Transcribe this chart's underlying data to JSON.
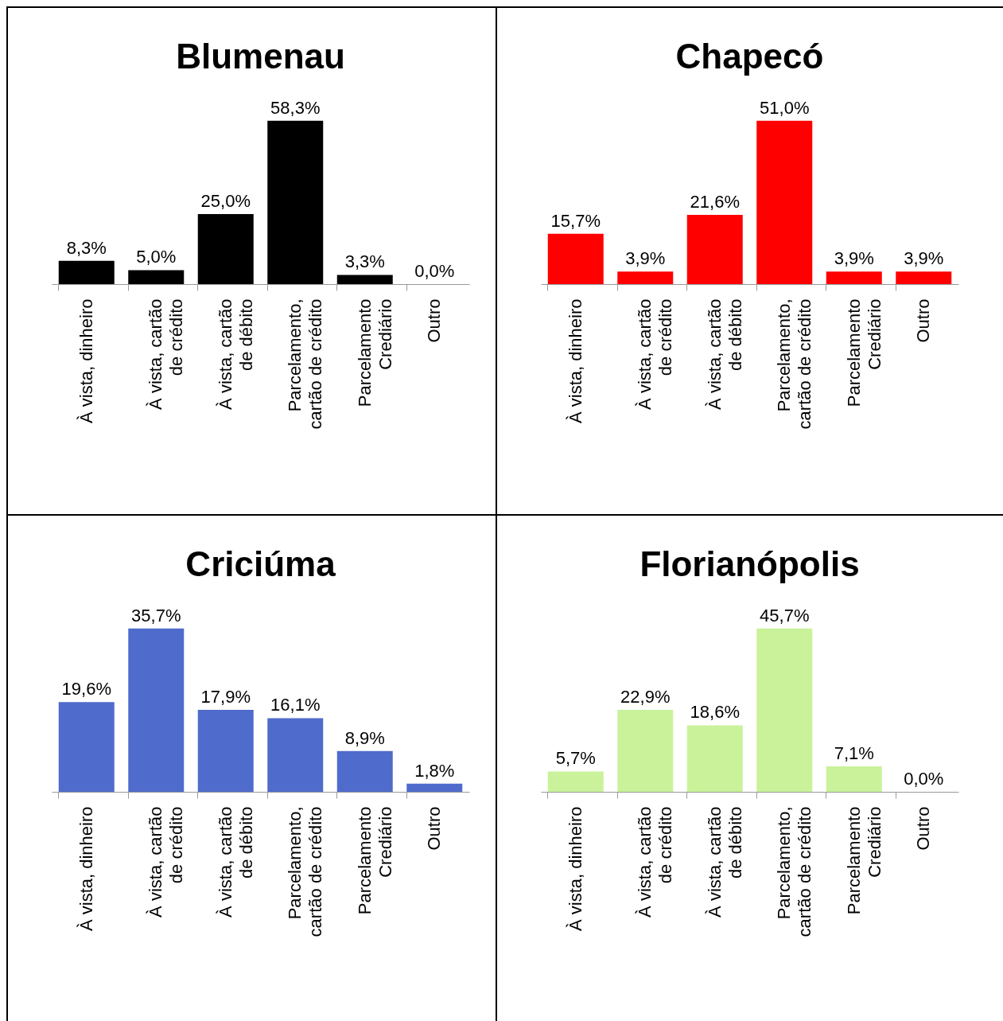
{
  "chart_data": [
    {
      "type": "bar",
      "title": "Blumenau",
      "categories": [
        "À vista, dinheiro",
        "À vista, cartão de crédito",
        "À vista, cartão de débito",
        "Parcelamento, cartão de crédito",
        "Parcelamento Crediário",
        "Outro"
      ],
      "values": [
        8.3,
        5.0,
        25.0,
        58.3,
        3.3,
        0.0
      ],
      "value_labels": [
        "8,3%",
        "5,0%",
        "25,0%",
        "58,3%",
        "3,3%",
        "0,0%"
      ],
      "color": "#000000"
    },
    {
      "type": "bar",
      "title": "Chapecó",
      "categories": [
        "À vista, dinheiro",
        "À vista, cartão de crédito",
        "À vista, cartão de débito",
        "Parcelamento, cartão de crédito",
        "Parcelamento Crediário",
        "Outro"
      ],
      "values": [
        15.7,
        3.9,
        21.6,
        51.0,
        3.9,
        3.9
      ],
      "value_labels": [
        "15,7%",
        "3,9%",
        "21,6%",
        "51,0%",
        "3,9%",
        "3,9%"
      ],
      "color": "#ff0000"
    },
    {
      "type": "bar",
      "title": "Criciúma",
      "categories": [
        "À vista, dinheiro",
        "À vista, cartão de crédito",
        "À vista, cartão de débito",
        "Parcelamento, cartão de crédito",
        "Parcelamento Crediário",
        "Outro"
      ],
      "values": [
        19.6,
        35.7,
        17.9,
        16.1,
        8.9,
        1.8
      ],
      "value_labels": [
        "19,6%",
        "35,7%",
        "17,9%",
        "16,1%",
        "8,9%",
        "1,8%"
      ],
      "color": "#4f6bcb"
    },
    {
      "type": "bar",
      "title": "Florianópolis",
      "categories": [
        "À vista, dinheiro",
        "À vista, cartão de crédito",
        "À vista, cartão de débito",
        "Parcelamento, cartão de crédito",
        "Parcelamento Crediário",
        "Outro"
      ],
      "values": [
        5.7,
        22.9,
        18.6,
        45.7,
        7.1,
        0.0
      ],
      "value_labels": [
        "5,7%",
        "22,9%",
        "18,6%",
        "45,7%",
        "7,1%",
        "0,0%"
      ],
      "color": "#c9f29a"
    }
  ]
}
